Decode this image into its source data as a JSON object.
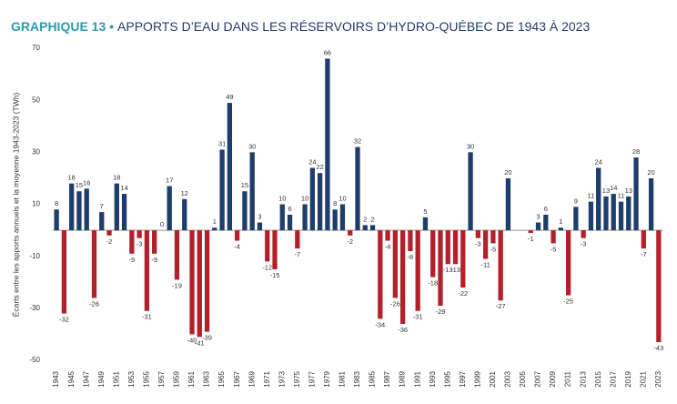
{
  "chart_data": {
    "type": "bar",
    "label": "GRAPHIQUE 13 •",
    "title": "APPORTS D’EAU DANS LES RÉSERVOIRS D’HYDRO-QUÉBEC DE 1943 À 2023",
    "ylabel": "Écarts entre les apports annuels et la moyenne 1943-2023 (TWh)",
    "categories": [
      "1943",
      null,
      "1945",
      null,
      "1947",
      null,
      "1949",
      null,
      "1951",
      null,
      "1953",
      null,
      "1955",
      null,
      "1957",
      null,
      "1959",
      null,
      "1961",
      null,
      "1963",
      null,
      "1965",
      null,
      "1967",
      null,
      "1969",
      null,
      "1971",
      null,
      "1973",
      null,
      "1975",
      null,
      "1977",
      null,
      "1979",
      null,
      "1981",
      null,
      "1983",
      null,
      "1985",
      null,
      "1987",
      null,
      "1989",
      null,
      "1991",
      null,
      "1993",
      null,
      "1995",
      null,
      "1997",
      null,
      "1999",
      null,
      "2001",
      null,
      "2003",
      null,
      "2005",
      null,
      "2007",
      null,
      "2009",
      null,
      "2011",
      null,
      "2013",
      null,
      "2015",
      null,
      "2017",
      null,
      "2019",
      null,
      "2021",
      null,
      "2023"
    ],
    "values": [
      8,
      -32,
      18,
      15,
      16,
      -26,
      7,
      -2,
      18,
      14,
      -9,
      -3,
      -31,
      -9,
      0,
      17,
      -19,
      12,
      -40,
      -41,
      -39,
      1,
      31,
      49,
      -4,
      15,
      30,
      3,
      -12,
      -15,
      10,
      6,
      -7,
      10,
      24,
      22,
      66,
      8,
      10,
      -2,
      32,
      2,
      2,
      -34,
      -4,
      -26,
      -36,
      -8,
      -31,
      5,
      -18,
      -29,
      -13,
      -13,
      -22,
      30,
      -3,
      -11,
      -5,
      -27,
      20,
      null,
      null,
      -1,
      3,
      6,
      -5,
      1,
      -25,
      9,
      -3,
      11,
      24,
      13,
      14,
      11,
      13,
      28,
      -7,
      20,
      -43
    ],
    "colors": {
      "positive": "#1f3d6b",
      "negative": "#b3202b"
    },
    "ylim": [
      -50,
      70
    ],
    "yticks": [
      -50,
      -30,
      -10,
      10,
      30,
      50,
      70
    ]
  }
}
